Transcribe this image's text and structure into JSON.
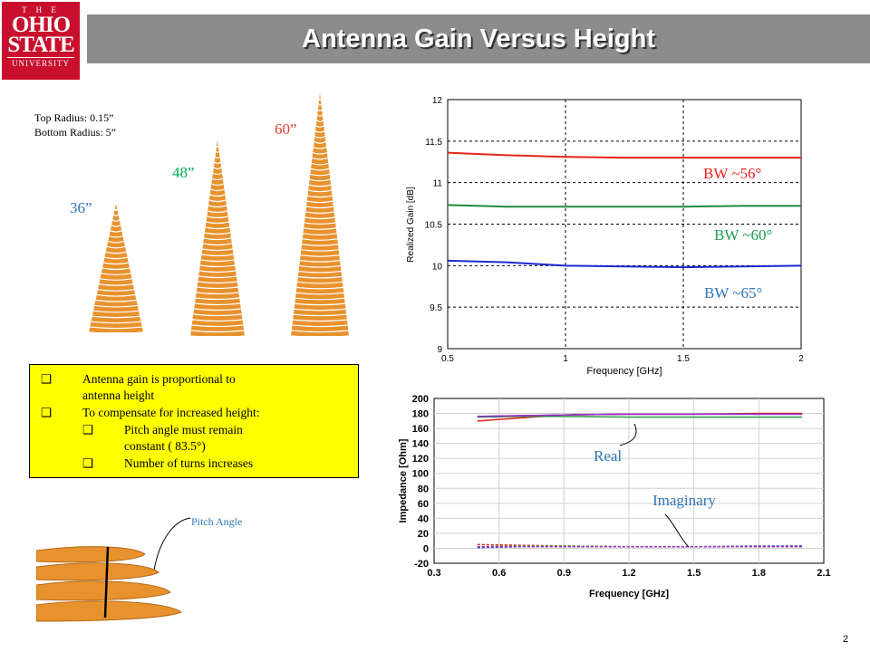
{
  "logo": {
    "line1": "T H E",
    "line2": "OHIO",
    "line3": "STATE",
    "line4": "UNIVERSITY"
  },
  "slide": {
    "title": "Antenna Gain Versus Height",
    "page_number": "2"
  },
  "antennas": {
    "radius_top": "Top Radius: 0.15”",
    "radius_bottom": "Bottom Radius: 5”",
    "height_36": "36”",
    "height_48": "48”",
    "height_60": "60”",
    "colors": {
      "h36": "#2e75b6",
      "h48": "#00b050",
      "h60": "#e03c31",
      "copper": "#e8922e"
    }
  },
  "bullets": {
    "b1": "Antenna gain is proportional to",
    "b1_cont": "antenna height",
    "b2": "To compensate for increased height:",
    "b2_sub1": "Pitch angle must remain",
    "b2_sub1_cont": "constant ( 83.5°)",
    "b2_sub2": "Number of turns increases",
    "marker": "❑"
  },
  "pitch": {
    "label": "Pitch Angle"
  },
  "chart_data": [
    {
      "type": "line",
      "xlabel": "Frequency [GHz]",
      "ylabel": "Realized Gain [dB]",
      "xlim": [
        0.5,
        2
      ],
      "ylim": [
        9,
        12
      ],
      "grid": true,
      "xticks": [
        "0.5",
        "1",
        "1.5",
        "2"
      ],
      "yticks": [
        "9",
        "9.5",
        "10",
        "10.5",
        "11",
        "11.5",
        "12"
      ],
      "series": [
        {
          "name": "BW ~56°",
          "color": "#e8231b",
          "x": [
            0.5,
            0.75,
            1.0,
            1.25,
            1.5,
            1.75,
            2.0
          ],
          "y": [
            11.36,
            11.33,
            11.31,
            11.3,
            11.3,
            11.3,
            11.3
          ]
        },
        {
          "name": "BW ~60°",
          "color": "#1e8b3a",
          "x": [
            0.5,
            0.75,
            1.0,
            1.25,
            1.5,
            1.75,
            2.0
          ],
          "y": [
            10.73,
            10.71,
            10.71,
            10.71,
            10.71,
            10.72,
            10.72
          ]
        },
        {
          "name": "BW ~65°",
          "color": "#1c2bd1",
          "x": [
            0.5,
            0.75,
            1.0,
            1.25,
            1.5,
            1.75,
            2.0
          ],
          "y": [
            10.06,
            10.04,
            10.0,
            9.99,
            9.98,
            9.99,
            10.0
          ]
        }
      ],
      "annotation_colors": [
        "#e8231b",
        "#1e9b52",
        "#2e75b6"
      ]
    },
    {
      "type": "line",
      "xlabel": "Frequency [GHz]",
      "ylabel": "Impedance [Ohm]",
      "xlim": [
        0.3,
        2.1
      ],
      "ylim": [
        -20,
        200
      ],
      "grid": true,
      "xticks": [
        "0.3",
        "0.6",
        "0.9",
        "1.2",
        "1.5",
        "1.8",
        "2.1"
      ],
      "yticks": [
        "-20",
        "0",
        "20",
        "40",
        "60",
        "80",
        "100",
        "120",
        "140",
        "160",
        "180",
        "200"
      ],
      "annotations": [
        "Real",
        "Imaginary"
      ],
      "series": [
        {
          "color": "#e8231b",
          "x": [
            0.5,
            0.7,
            0.9,
            1.2,
            1.5,
            1.8,
            2.0
          ],
          "y": [
            170,
            174,
            178,
            179,
            179,
            180,
            180
          ],
          "dash": false
        },
        {
          "color": "#2d9a4a",
          "x": [
            0.5,
            0.7,
            0.9,
            1.2,
            1.5,
            1.8,
            2.0
          ],
          "y": [
            175,
            176,
            176,
            175,
            175,
            175,
            175
          ],
          "dash": false
        },
        {
          "color": "#2a36d8",
          "x": [
            0.5,
            0.7,
            0.9,
            1.2,
            1.5,
            1.8,
            2.0
          ],
          "y": [
            176,
            177,
            178,
            179,
            179,
            179,
            179
          ],
          "dash": false
        },
        {
          "color": "#a030c0",
          "x": [
            0.5,
            0.7,
            0.9,
            1.2,
            1.5,
            1.8,
            2.0
          ],
          "y": [
            176,
            177,
            178,
            179,
            179,
            179,
            179
          ],
          "dash": false
        },
        {
          "color": "#e8231b",
          "x": [
            0.5,
            0.7,
            0.9,
            1.2,
            1.5,
            1.8,
            2.0
          ],
          "y": [
            5,
            4,
            3,
            2,
            2,
            2,
            2
          ],
          "dash": true
        },
        {
          "color": "#2d9a4a",
          "x": [
            0.5,
            0.7,
            0.9,
            1.2,
            1.5,
            1.8,
            2.0
          ],
          "y": [
            2,
            3,
            3,
            2,
            2,
            2,
            3
          ],
          "dash": true
        },
        {
          "color": "#2a36d8",
          "x": [
            0.5,
            0.7,
            0.9,
            1.2,
            1.5,
            1.8,
            2.0
          ],
          "y": [
            1,
            2,
            2,
            2,
            2,
            3,
            3
          ],
          "dash": true
        },
        {
          "color": "#a030c0",
          "x": [
            0.5,
            0.7,
            0.9,
            1.2,
            1.5,
            1.8,
            2.0
          ],
          "y": [
            2,
            2,
            2,
            2,
            2,
            2,
            2
          ],
          "dash": true
        }
      ]
    }
  ]
}
